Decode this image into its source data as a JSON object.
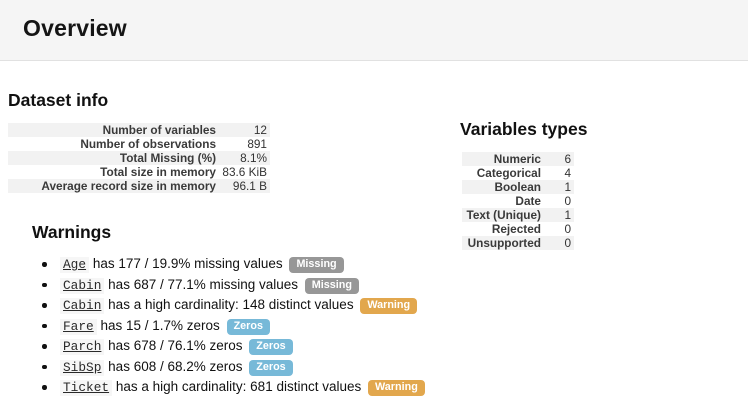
{
  "page": {
    "title": "Overview"
  },
  "dataset_info": {
    "heading": "Dataset info",
    "rows": [
      {
        "label": "Number of variables",
        "value": "12"
      },
      {
        "label": "Number of observations",
        "value": "891"
      },
      {
        "label": "Total Missing (%)",
        "value": "8.1%"
      },
      {
        "label": "Total size in memory",
        "value": "83.6 KiB"
      },
      {
        "label": "Average record size in memory",
        "value": "96.1 B"
      }
    ]
  },
  "variables_types": {
    "heading": "Variables types",
    "rows": [
      {
        "label": "Numeric",
        "value": "6"
      },
      {
        "label": "Categorical",
        "value": "4"
      },
      {
        "label": "Boolean",
        "value": "1"
      },
      {
        "label": "Date",
        "value": "0"
      },
      {
        "label": "Text (Unique)",
        "value": "1"
      },
      {
        "label": "Rejected",
        "value": "0"
      },
      {
        "label": "Unsupported",
        "value": "0"
      }
    ]
  },
  "warnings": {
    "heading": "Warnings",
    "items": [
      {
        "variable": "Age",
        "text": "has 177 / 19.9% missing values",
        "badge": "Missing",
        "badge_type": "missing"
      },
      {
        "variable": "Cabin",
        "text": "has 687 / 77.1% missing values",
        "badge": "Missing",
        "badge_type": "missing"
      },
      {
        "variable": "Cabin",
        "text": "has a high cardinality: 148 distinct values",
        "badge": "Warning",
        "badge_type": "warning"
      },
      {
        "variable": "Fare",
        "text": "has 15 / 1.7% zeros",
        "badge": "Zeros",
        "badge_type": "zeros"
      },
      {
        "variable": "Parch",
        "text": "has 678 / 76.1% zeros",
        "badge": "Zeros",
        "badge_type": "zeros"
      },
      {
        "variable": "SibSp",
        "text": "has 608 / 68.2% zeros",
        "badge": "Zeros",
        "badge_type": "zeros"
      },
      {
        "variable": "Ticket",
        "text": "has a high cardinality: 681 distinct values",
        "badge": "Warning",
        "badge_type": "warning"
      }
    ]
  },
  "colors": {
    "header_bg": "#f5f5f5",
    "stripe": "#f2f2f2",
    "badge_missing": "#979797",
    "badge_warning": "#e2a74d",
    "badge_zeros": "#77b9d8"
  }
}
